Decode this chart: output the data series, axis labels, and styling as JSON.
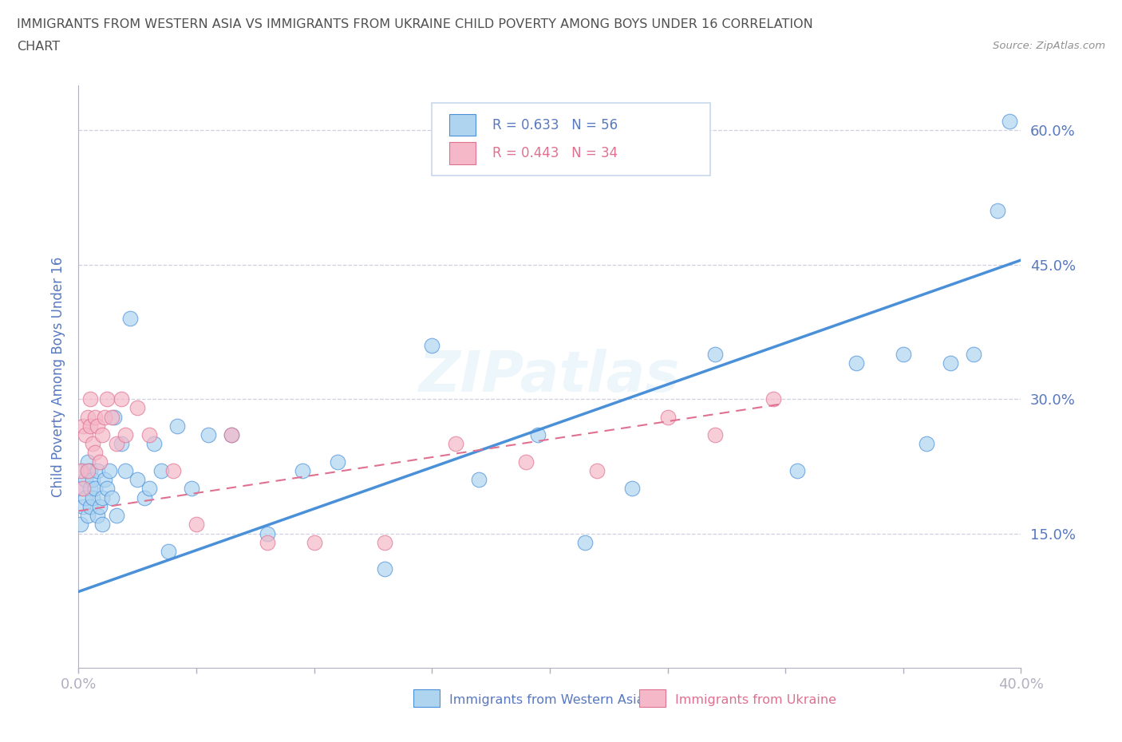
{
  "title_line1": "IMMIGRANTS FROM WESTERN ASIA VS IMMIGRANTS FROM UKRAINE CHILD POVERTY AMONG BOYS UNDER 16 CORRELATION",
  "title_line2": "CHART",
  "source_text": "Source: ZipAtlas.com",
  "ylabel": "Child Poverty Among Boys Under 16",
  "xlim": [
    0.0,
    0.4
  ],
  "ylim": [
    0.0,
    0.65
  ],
  "yticks": [
    0.15,
    0.3,
    0.45,
    0.6
  ],
  "ytick_labels": [
    "15.0%",
    "30.0%",
    "45.0%",
    "60.0%"
  ],
  "xticks": [
    0.0,
    0.05,
    0.1,
    0.15,
    0.2,
    0.25,
    0.3,
    0.35,
    0.4
  ],
  "xtick_labels": [
    "0.0%",
    "",
    "",
    "",
    "",
    "",
    "",
    "",
    "40.0%"
  ],
  "watermark": "ZIPatlas",
  "legend_blue_r": "R = 0.633",
  "legend_blue_n": "N = 56",
  "legend_pink_r": "R = 0.443",
  "legend_pink_n": "N = 34",
  "blue_color": "#AED4F0",
  "blue_line_color": "#4A90D9",
  "pink_color": "#F5B8C8",
  "pink_line_color": "#E07090",
  "axis_color": "#B0B0C0",
  "grid_color": "#D0D0E0",
  "text_color": "#5878C0",
  "title_color": "#505050",
  "blue_scatter_x": [
    0.001,
    0.001,
    0.002,
    0.002,
    0.003,
    0.003,
    0.004,
    0.004,
    0.005,
    0.005,
    0.005,
    0.006,
    0.006,
    0.007,
    0.008,
    0.008,
    0.009,
    0.01,
    0.01,
    0.011,
    0.012,
    0.013,
    0.014,
    0.015,
    0.016,
    0.018,
    0.02,
    0.022,
    0.025,
    0.028,
    0.03,
    0.032,
    0.035,
    0.038,
    0.042,
    0.048,
    0.055,
    0.065,
    0.08,
    0.095,
    0.11,
    0.13,
    0.15,
    0.17,
    0.195,
    0.215,
    0.235,
    0.27,
    0.305,
    0.33,
    0.35,
    0.36,
    0.37,
    0.38,
    0.39,
    0.395
  ],
  "blue_scatter_y": [
    0.2,
    0.16,
    0.18,
    0.22,
    0.21,
    0.19,
    0.17,
    0.23,
    0.2,
    0.22,
    0.18,
    0.21,
    0.19,
    0.2,
    0.17,
    0.22,
    0.18,
    0.19,
    0.16,
    0.21,
    0.2,
    0.22,
    0.19,
    0.28,
    0.17,
    0.25,
    0.22,
    0.39,
    0.21,
    0.19,
    0.2,
    0.25,
    0.22,
    0.13,
    0.27,
    0.2,
    0.26,
    0.26,
    0.15,
    0.22,
    0.23,
    0.11,
    0.36,
    0.21,
    0.26,
    0.14,
    0.2,
    0.35,
    0.22,
    0.34,
    0.35,
    0.25,
    0.34,
    0.35,
    0.51,
    0.61
  ],
  "pink_scatter_x": [
    0.001,
    0.002,
    0.002,
    0.003,
    0.004,
    0.004,
    0.005,
    0.005,
    0.006,
    0.007,
    0.007,
    0.008,
    0.009,
    0.01,
    0.011,
    0.012,
    0.014,
    0.016,
    0.018,
    0.02,
    0.025,
    0.03,
    0.04,
    0.05,
    0.065,
    0.08,
    0.1,
    0.13,
    0.16,
    0.19,
    0.22,
    0.25,
    0.27,
    0.295
  ],
  "pink_scatter_y": [
    0.22,
    0.2,
    0.27,
    0.26,
    0.28,
    0.22,
    0.3,
    0.27,
    0.25,
    0.24,
    0.28,
    0.27,
    0.23,
    0.26,
    0.28,
    0.3,
    0.28,
    0.25,
    0.3,
    0.26,
    0.29,
    0.26,
    0.22,
    0.16,
    0.26,
    0.14,
    0.14,
    0.14,
    0.25,
    0.23,
    0.22,
    0.28,
    0.26,
    0.3
  ],
  "blue_trend_x": [
    0.0,
    0.4
  ],
  "blue_trend_y": [
    0.085,
    0.455
  ],
  "pink_trend_x": [
    0.0,
    0.3
  ],
  "pink_trend_y": [
    0.175,
    0.295
  ]
}
